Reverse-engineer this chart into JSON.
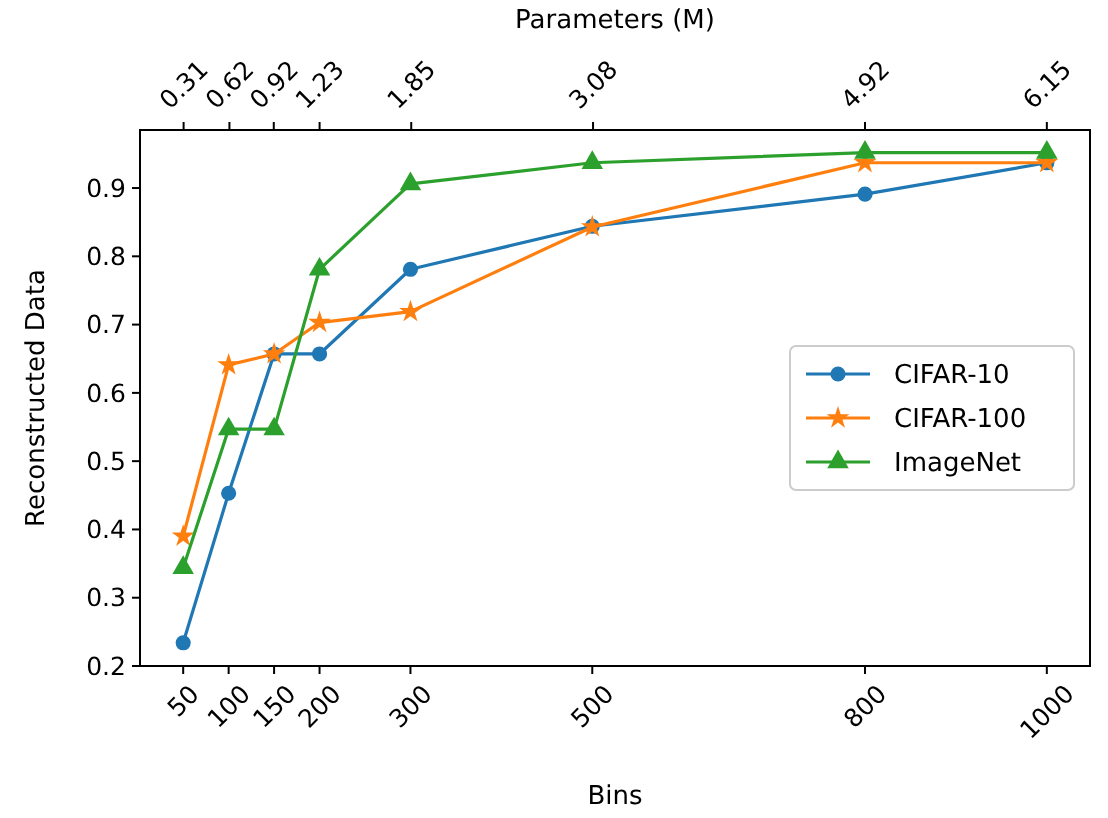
{
  "chart_data": {
    "type": "line",
    "xlabel": "Bins",
    "ylabel": "Reconstructed Data",
    "x2label": "Parameters (M)",
    "x": [
      50,
      100,
      150,
      200,
      300,
      500,
      800,
      1000
    ],
    "xlim": [
      2.5,
      1047.5
    ],
    "xticks": [
      50,
      100,
      150,
      200,
      300,
      500,
      800,
      1000
    ],
    "x2lim": [
      0.015,
      6.442
    ],
    "x2ticks": [
      0.31,
      0.62,
      0.92,
      1.23,
      1.85,
      3.08,
      4.92,
      6.15
    ],
    "ylim": [
      0.2,
      0.985
    ],
    "yticks": [
      0.2,
      0.3,
      0.4,
      0.5,
      0.6,
      0.7,
      0.8,
      0.9
    ],
    "grid": false,
    "legend": "right",
    "line_style": "solid",
    "series": [
      {
        "name": "CIFAR-10",
        "color": "#1f77b4",
        "marker": "circle",
        "values": [
          0.234,
          0.453,
          0.657,
          0.657,
          0.781,
          0.844,
          0.891,
          0.937
        ]
      },
      {
        "name": "CIFAR-100",
        "color": "#ff7f0e",
        "marker": "star",
        "values": [
          0.39,
          0.641,
          0.657,
          0.703,
          0.719,
          0.843,
          0.937,
          0.937
        ]
      },
      {
        "name": "ImageNet",
        "color": "#2ca02c",
        "marker": "triangle",
        "values": [
          0.344,
          0.547,
          0.547,
          0.781,
          0.906,
          0.937,
          0.952,
          0.952
        ]
      }
    ]
  }
}
